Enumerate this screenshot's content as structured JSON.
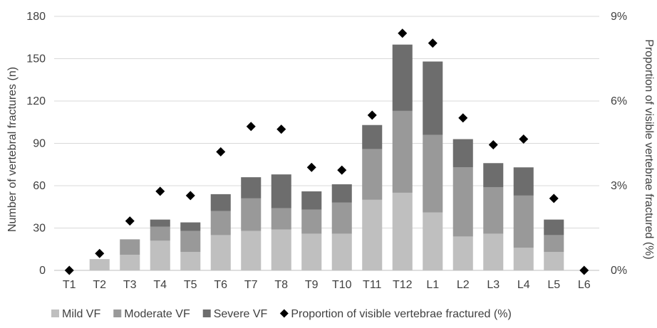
{
  "chart_data": {
    "type": "bar",
    "stacked": true,
    "categories": [
      "T1",
      "T2",
      "T3",
      "T4",
      "T5",
      "T6",
      "T7",
      "T8",
      "T9",
      "T10",
      "T11",
      "T12",
      "L1",
      "L2",
      "L3",
      "L4",
      "L5",
      "L6"
    ],
    "series": [
      {
        "name": "Mild VF",
        "color": "#bfbfbf",
        "values": [
          0,
          8,
          11,
          21,
          13,
          25,
          28,
          29,
          26,
          26,
          50,
          55,
          41,
          24,
          26,
          16,
          13,
          0
        ]
      },
      {
        "name": "Moderate VF",
        "color": "#999999",
        "values": [
          0,
          0,
          11,
          10,
          15,
          17,
          23,
          15,
          17,
          22,
          36,
          58,
          55,
          49,
          33,
          37,
          12,
          0
        ]
      },
      {
        "name": "Severe VF",
        "color": "#6d6d6d",
        "values": [
          0,
          0,
          0,
          5,
          6,
          12,
          15,
          24,
          13,
          13,
          17,
          47,
          52,
          20,
          17,
          20,
          11,
          0
        ]
      }
    ],
    "line_series": {
      "name": "Proportion of visible vertebrae fractured (%)",
      "marker": "diamond",
      "color": "#000000",
      "values": [
        0,
        0.6,
        1.75,
        2.8,
        2.65,
        4.2,
        5.1,
        5.0,
        3.65,
        3.55,
        5.5,
        8.4,
        8.05,
        5.4,
        4.45,
        4.65,
        2.55,
        0
      ]
    },
    "ylabel": "Number of vertebral fractures (n)",
    "y2label": "Proportion of visible vertebrae fractured (%)",
    "ylim": [
      0,
      180
    ],
    "yticks": [
      "0",
      "30",
      "60",
      "90",
      "120",
      "150",
      "180"
    ],
    "y2lim": [
      0,
      9
    ],
    "y2ticks": [
      "0%",
      "3%",
      "6%",
      "9%"
    ],
    "grid": true,
    "legend_position": "bottom"
  }
}
